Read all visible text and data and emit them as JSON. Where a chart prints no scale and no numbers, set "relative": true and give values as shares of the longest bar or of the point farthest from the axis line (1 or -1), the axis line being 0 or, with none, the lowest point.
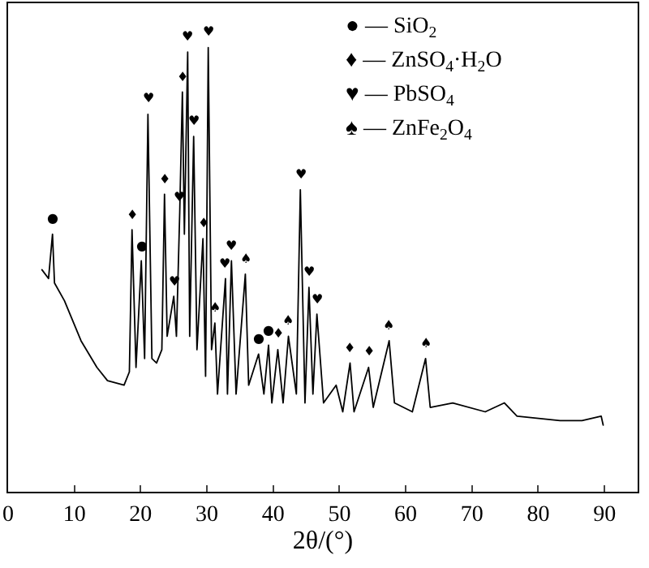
{
  "chart_data": {
    "type": "line",
    "relative": true,
    "xlabel": "2θ/(°)",
    "xlim": [
      0,
      95
    ],
    "xticks": [
      0,
      10,
      20,
      30,
      40,
      50,
      60,
      70,
      80,
      90
    ],
    "marker": "none",
    "line_style": "solid",
    "series": [
      {
        "color": "#000000",
        "x": [
          5.1,
          6.1,
          6.7,
          7.0,
          8.5,
          11.0,
          13.4,
          15.0,
          17.5,
          18.3,
          18.7,
          19.3,
          20.1,
          20.6,
          21.1,
          21.7,
          22.4,
          23.2,
          23.6,
          24.0,
          25.0,
          25.4,
          25.9,
          26.3,
          26.6,
          27.1,
          27.4,
          28.0,
          28.5,
          29.4,
          29.8,
          30.2,
          30.7,
          31.2,
          31.6,
          32.8,
          33.1,
          33.7,
          34.4,
          35.8,
          36.3,
          37.8,
          38.6,
          39.3,
          39.8,
          40.7,
          41.5,
          42.3,
          43.5,
          44.1,
          44.8,
          45.4,
          46.0,
          46.6,
          47.6,
          49.5,
          50.5,
          51.6,
          52.2,
          54.4,
          55.1,
          57.5,
          58.3,
          61.0,
          63.0,
          63.7,
          67.1,
          72.0,
          74.9,
          76.8,
          83.3,
          86.6,
          89.5,
          89.8
        ],
        "values": [
          0.5,
          0.48,
          0.58,
          0.47,
          0.43,
          0.34,
          0.28,
          0.25,
          0.24,
          0.27,
          0.59,
          0.28,
          0.52,
          0.3,
          0.85,
          0.3,
          0.29,
          0.32,
          0.67,
          0.35,
          0.44,
          0.35,
          0.63,
          0.9,
          0.58,
          0.99,
          0.35,
          0.8,
          0.32,
          0.57,
          0.26,
          1.0,
          0.32,
          0.38,
          0.22,
          0.48,
          0.22,
          0.52,
          0.22,
          0.49,
          0.24,
          0.31,
          0.22,
          0.33,
          0.2,
          0.32,
          0.2,
          0.35,
          0.22,
          0.68,
          0.2,
          0.46,
          0.22,
          0.4,
          0.2,
          0.24,
          0.18,
          0.29,
          0.18,
          0.28,
          0.19,
          0.34,
          0.2,
          0.18,
          0.3,
          0.19,
          0.2,
          0.18,
          0.2,
          0.17,
          0.16,
          0.16,
          0.17,
          0.15
        ]
      }
    ],
    "annotations": [
      {
        "text": "●",
        "x": 6.7,
        "y": 0.58
      },
      {
        "text": "♦",
        "x": 18.7,
        "y": 0.59
      },
      {
        "text": "●",
        "x": 20.1,
        "y": 0.52
      },
      {
        "text": "♥",
        "x": 21.1,
        "y": 0.85
      },
      {
        "text": "♦",
        "x": 23.6,
        "y": 0.67
      },
      {
        "text": "♥",
        "x": 25.0,
        "y": 0.44
      },
      {
        "text": "♥",
        "x": 25.9,
        "y": 0.63
      },
      {
        "text": "♦",
        "x": 26.3,
        "y": 0.9
      },
      {
        "text": "♥",
        "x": 27.1,
        "y": 0.99
      },
      {
        "text": "♥",
        "x": 28.0,
        "y": 0.8
      },
      {
        "text": "♦",
        "x": 29.4,
        "y": 0.57
      },
      {
        "text": "♥",
        "x": 30.2,
        "y": 1.0
      },
      {
        "text": "♠",
        "x": 31.2,
        "y": 0.38
      },
      {
        "text": "♥",
        "x": 32.8,
        "y": 0.48
      },
      {
        "text": "♥",
        "x": 33.7,
        "y": 0.52
      },
      {
        "text": "♠",
        "x": 35.8,
        "y": 0.49
      },
      {
        "text": "●",
        "x": 37.8,
        "y": 0.31
      },
      {
        "text": "●",
        "x": 39.3,
        "y": 0.33
      },
      {
        "text": "♦",
        "x": 40.7,
        "y": 0.32
      },
      {
        "text": "♠",
        "x": 42.3,
        "y": 0.35
      },
      {
        "text": "♥",
        "x": 44.1,
        "y": 0.68
      },
      {
        "text": "♥",
        "x": 45.4,
        "y": 0.46
      },
      {
        "text": "♥",
        "x": 46.6,
        "y": 0.4
      },
      {
        "text": "♦",
        "x": 51.6,
        "y": 0.29
      },
      {
        "text": "♦",
        "x": 54.4,
        "y": 0.28
      },
      {
        "text": "♠",
        "x": 57.5,
        "y": 0.34
      },
      {
        "text": "♠",
        "x": 63.0,
        "y": 0.3
      },
      "● — SiO$_{2}$",
      "♦ — ZnSO$_{4}$·H$_{2}$O",
      "♥ — PbSO$_{4}$",
      "♠ — ZnFe$_{2}$O$_{4}$"
    ]
  }
}
